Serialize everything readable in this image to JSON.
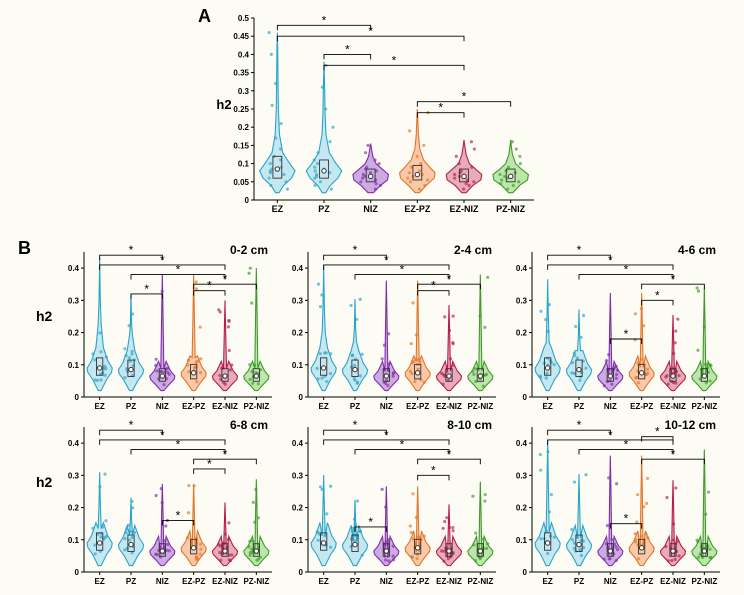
{
  "background_color": "#fdfcf4",
  "categories": [
    "EZ",
    "PZ",
    "NIZ",
    "EZ-PZ",
    "EZ-NIZ",
    "PZ-NIZ"
  ],
  "colors": {
    "EZ": {
      "fill": "#bfe4f0",
      "stroke": "#2aa3c9"
    },
    "PZ": {
      "fill": "#bfe4f0",
      "stroke": "#2aa3c9"
    },
    "NIZ": {
      "fill": "#c9a1e0",
      "stroke": "#7e2fa6"
    },
    "EZ-PZ": {
      "fill": "#f8c3a2",
      "stroke": "#e0762a"
    },
    "EZ-NIZ": {
      "fill": "#e6a2b6",
      "stroke": "#b51e4a"
    },
    "PZ-NIZ": {
      "fill": "#b6e4a2",
      "stroke": "#3e9a2b"
    }
  },
  "panel_label_A": "A",
  "panel_label_B": "B",
  "ylabel": "h2",
  "axis_fontsize": 10,
  "label_fontsize": 14,
  "tick_font": 9,
  "axis_color": "#000000",
  "violin_opacity": 0.9,
  "violin_stroke_width": 1.1,
  "box_stroke": "#333333",
  "box_fill": "#ffffff",
  "median_marker": "circle",
  "median_color": "#ffffff",
  "sig_marker": "*",
  "panelA": {
    "type": "violin",
    "ylim": [
      0,
      0.5
    ],
    "yticks": [
      0,
      0.05,
      0.1,
      0.15,
      0.2,
      0.25,
      0.3,
      0.35,
      0.4,
      0.45,
      0.5
    ],
    "series": [
      {
        "cat": "EZ",
        "profile": [
          [
            0.02,
            0.1
          ],
          [
            0.04,
            0.35
          ],
          [
            0.06,
            0.8
          ],
          [
            0.08,
            1.0
          ],
          [
            0.1,
            0.7
          ],
          [
            0.13,
            0.3
          ],
          [
            0.18,
            0.12
          ],
          [
            0.25,
            0.06
          ],
          [
            0.32,
            0.04
          ],
          [
            0.42,
            0.02
          ],
          [
            0.46,
            0.0
          ]
        ],
        "median": 0.085,
        "q1": 0.06,
        "q3": 0.12,
        "points": [
          0.03,
          0.04,
          0.05,
          0.06,
          0.07,
          0.075,
          0.08,
          0.085,
          0.09,
          0.1,
          0.11,
          0.12,
          0.14,
          0.17,
          0.21,
          0.26,
          0.32,
          0.4,
          0.46
        ]
      },
      {
        "cat": "PZ",
        "profile": [
          [
            0.02,
            0.1
          ],
          [
            0.04,
            0.35
          ],
          [
            0.06,
            0.78
          ],
          [
            0.08,
            1.0
          ],
          [
            0.1,
            0.68
          ],
          [
            0.13,
            0.3
          ],
          [
            0.18,
            0.11
          ],
          [
            0.24,
            0.06
          ],
          [
            0.3,
            0.04
          ],
          [
            0.36,
            0.01
          ],
          [
            0.38,
            0.0
          ]
        ],
        "median": 0.08,
        "q1": 0.06,
        "q3": 0.11,
        "points": [
          0.03,
          0.04,
          0.05,
          0.06,
          0.065,
          0.07,
          0.075,
          0.08,
          0.085,
          0.09,
          0.1,
          0.11,
          0.13,
          0.16,
          0.2,
          0.25,
          0.31,
          0.37
        ]
      },
      {
        "cat": "NIZ",
        "profile": [
          [
            0.02,
            0.15
          ],
          [
            0.04,
            0.55
          ],
          [
            0.055,
            0.95
          ],
          [
            0.07,
            1.0
          ],
          [
            0.085,
            0.65
          ],
          [
            0.1,
            0.3
          ],
          [
            0.12,
            0.12
          ],
          [
            0.14,
            0.05
          ],
          [
            0.155,
            0.0
          ]
        ],
        "median": 0.065,
        "q1": 0.05,
        "q3": 0.085,
        "points": [
          0.03,
          0.04,
          0.045,
          0.05,
          0.055,
          0.06,
          0.065,
          0.07,
          0.075,
          0.08,
          0.085,
          0.09,
          0.1,
          0.11,
          0.13,
          0.15
        ]
      },
      {
        "cat": "EZ-PZ",
        "profile": [
          [
            0.02,
            0.12
          ],
          [
            0.04,
            0.5
          ],
          [
            0.06,
            0.95
          ],
          [
            0.075,
            1.0
          ],
          [
            0.09,
            0.7
          ],
          [
            0.11,
            0.35
          ],
          [
            0.14,
            0.14
          ],
          [
            0.18,
            0.06
          ],
          [
            0.23,
            0.02
          ],
          [
            0.25,
            0.0
          ]
        ],
        "median": 0.07,
        "q1": 0.055,
        "q3": 0.095,
        "points": [
          0.03,
          0.04,
          0.05,
          0.055,
          0.06,
          0.065,
          0.07,
          0.075,
          0.08,
          0.09,
          0.1,
          0.12,
          0.15,
          0.19,
          0.24
        ]
      },
      {
        "cat": "EZ-NIZ",
        "profile": [
          [
            0.02,
            0.12
          ],
          [
            0.04,
            0.5
          ],
          [
            0.055,
            0.95
          ],
          [
            0.07,
            1.0
          ],
          [
            0.085,
            0.65
          ],
          [
            0.1,
            0.3
          ],
          [
            0.125,
            0.12
          ],
          [
            0.15,
            0.04
          ],
          [
            0.165,
            0.0
          ]
        ],
        "median": 0.065,
        "q1": 0.05,
        "q3": 0.085,
        "points": [
          0.03,
          0.04,
          0.045,
          0.05,
          0.055,
          0.06,
          0.065,
          0.07,
          0.075,
          0.08,
          0.09,
          0.1,
          0.12,
          0.14,
          0.16
        ]
      },
      {
        "cat": "PZ-NIZ",
        "profile": [
          [
            0.02,
            0.12
          ],
          [
            0.04,
            0.5
          ],
          [
            0.055,
            0.95
          ],
          [
            0.07,
            1.0
          ],
          [
            0.085,
            0.6
          ],
          [
            0.1,
            0.28
          ],
          [
            0.125,
            0.1
          ],
          [
            0.15,
            0.03
          ],
          [
            0.165,
            0.0
          ]
        ],
        "median": 0.065,
        "q1": 0.05,
        "q3": 0.085,
        "points": [
          0.03,
          0.04,
          0.045,
          0.05,
          0.055,
          0.06,
          0.065,
          0.07,
          0.075,
          0.08,
          0.09,
          0.1,
          0.12,
          0.14,
          0.16
        ]
      }
    ],
    "sig_bars": [
      {
        "from": 0,
        "to": 2,
        "y": 0.48,
        "label": "*"
      },
      {
        "from": 0,
        "to": 4,
        "y": 0.45,
        "label": "*"
      },
      {
        "from": 1,
        "to": 2,
        "y": 0.4,
        "label": "*"
      },
      {
        "from": 1,
        "to": 4,
        "y": 0.37,
        "label": "*"
      },
      {
        "from": 3,
        "to": 5,
        "y": 0.27,
        "label": "*"
      },
      {
        "from": 3,
        "to": 4,
        "y": 0.24,
        "label": "*"
      }
    ]
  },
  "panelB": {
    "type": "violin-grid",
    "ylim": [
      0,
      0.45
    ],
    "yticks": [
      0,
      0.1,
      0.2,
      0.3,
      0.4
    ],
    "subplots": [
      {
        "title": "0-2 cm"
      },
      {
        "title": "2-4 cm"
      },
      {
        "title": "4-6 cm"
      },
      {
        "title": "6-8 cm"
      },
      {
        "title": "8-10 cm"
      },
      {
        "title": "10-12 cm"
      }
    ],
    "shared_sig_top": [
      {
        "from": 0,
        "to": 2,
        "y": 0.44,
        "label": "*"
      },
      {
        "from": 0,
        "to": 4,
        "y": 0.41,
        "label": "*"
      },
      {
        "from": 1,
        "to": 4,
        "y": 0.38,
        "label": "*"
      },
      {
        "from": 3,
        "to": 5,
        "y": 0.35,
        "label": "*"
      }
    ],
    "extra_sig": {
      "0": [
        {
          "from": 1,
          "to": 2,
          "y": 0.32,
          "label": "*"
        },
        {
          "from": 3,
          "to": 4,
          "y": 0.33,
          "label": "*"
        }
      ],
      "1": [
        {
          "from": 3,
          "to": 4,
          "y": 0.33,
          "label": "*"
        }
      ],
      "2": [
        {
          "from": 2,
          "to": 3,
          "y": 0.18,
          "label": "*"
        },
        {
          "from": 3,
          "to": 4,
          "y": 0.3,
          "label": "*"
        }
      ],
      "3": [
        {
          "from": 2,
          "to": 3,
          "y": 0.16,
          "label": "*"
        },
        {
          "from": 3,
          "to": 4,
          "y": 0.32,
          "label": "*"
        }
      ],
      "4": [
        {
          "from": 1,
          "to": 2,
          "y": 0.14,
          "label": "*"
        },
        {
          "from": 3,
          "to": 4,
          "y": 0.3,
          "label": "*"
        }
      ],
      "5": [
        {
          "from": 2,
          "to": 3,
          "y": 0.15,
          "label": "*"
        },
        {
          "from": 3,
          "to": 4,
          "y": 0.42,
          "label": "*"
        }
      ]
    },
    "series_proto": [
      {
        "cat": "EZ",
        "median": 0.09,
        "spread": 1.0,
        "top": 0.43
      },
      {
        "cat": "PZ",
        "median": 0.085,
        "spread": 0.9,
        "top": 0.32
      },
      {
        "cat": "NIZ",
        "median": 0.065,
        "spread": 0.55,
        "top": 0.38
      },
      {
        "cat": "EZ-PZ",
        "median": 0.075,
        "spread": 0.65,
        "top": 0.38
      },
      {
        "cat": "EZ-NIZ",
        "median": 0.065,
        "spread": 0.55,
        "top": 0.3
      },
      {
        "cat": "PZ-NIZ",
        "median": 0.065,
        "spread": 0.55,
        "top": 0.4
      }
    ],
    "spread_scale_by_subplot": [
      1.0,
      0.9,
      0.75,
      0.6,
      0.5,
      0.55
    ],
    "max_scale_by_subplot": [
      1.0,
      0.95,
      0.85,
      0.72,
      0.7,
      0.95
    ]
  }
}
